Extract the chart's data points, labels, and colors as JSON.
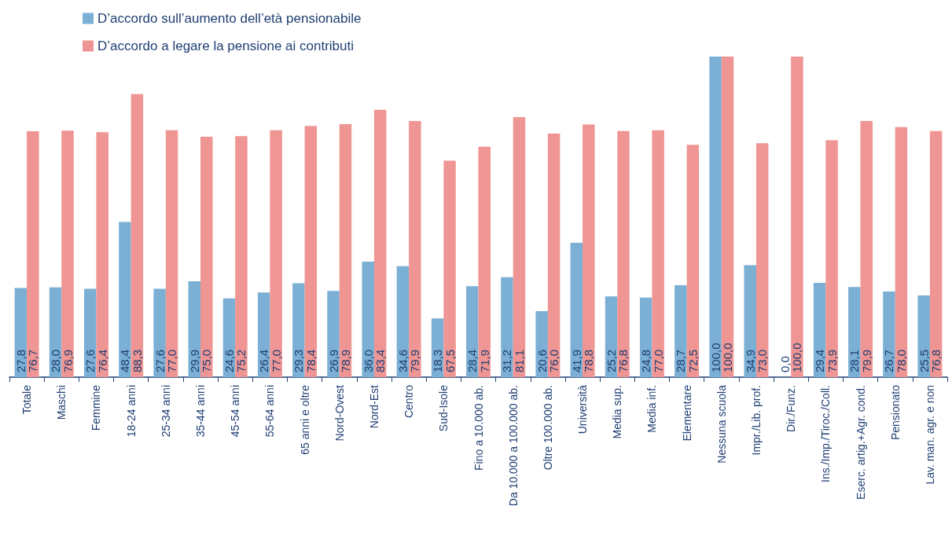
{
  "chart_data": {
    "type": "bar",
    "categories": [
      "Totale",
      "Maschi",
      "Femmine",
      "18-24 anni",
      "25-34 anni",
      "35-44 anni",
      "45-54 anni",
      "55-64 anni",
      "65 anni e oltre",
      "Nord-Ovest",
      "Nord-Est",
      "Centro",
      "Sud-Isole",
      "Fino a 10.000 ab.",
      "Da 10.000 a 100.000 ab.",
      "Oltre 100.000 ab.",
      "Università",
      "Media sup.",
      "Media inf.",
      "Elementare",
      "Nessuna scuola",
      "Impr./Lib. prof.",
      "Dir./Funz.",
      "Ins./Imp./Tiroc./Coll.",
      "Eserc. artig.+Agr. cond.",
      "Pensionato",
      "Lav. man. agr. e non"
    ],
    "series": [
      {
        "name": "D’accordo sull’aumento dell’età pensionabile",
        "color": "#7bafd4",
        "values": [
          27.8,
          28.0,
          27.6,
          48.4,
          27.6,
          29.9,
          24.6,
          26.4,
          29.3,
          26.9,
          36.0,
          34.6,
          18.3,
          28.4,
          31.2,
          20.6,
          41.9,
          25.2,
          24.8,
          28.7,
          100.0,
          34.9,
          0.0,
          29.4,
          28.1,
          26.7,
          25.5
        ],
        "value_labels": [
          "27,8",
          "28,0",
          "27,6",
          "48,4",
          "27,6",
          "29,9",
          "24,6",
          "26,4",
          "29,3",
          "26,9",
          "36,0",
          "34,6",
          "18,3",
          "28,4",
          "31,2",
          "20,6",
          "41,9",
          "25,2",
          "24,8",
          "28,7",
          "100,0",
          "34,9",
          "0,0",
          "29,4",
          "28,1",
          "26,7",
          "25,5"
        ]
      },
      {
        "name": "D’accordo a legare la pensione ai contributi",
        "color": "#ef9593",
        "values": [
          76.7,
          76.9,
          76.4,
          88.3,
          77.0,
          75.0,
          75.2,
          77.0,
          78.4,
          78.9,
          83.4,
          79.9,
          67.5,
          71.9,
          81.1,
          76.0,
          78.8,
          76.8,
          77.0,
          72.5,
          100.0,
          73.0,
          100.0,
          73.9,
          79.9,
          78.0,
          76.8
        ],
        "value_labels": [
          "76,7",
          "76,9",
          "76,4",
          "88,3",
          "77,0",
          "75,0",
          "75,2",
          "77,0",
          "78,4",
          "78,9",
          "83,4",
          "79,9",
          "67,5",
          "71,9",
          "81,1",
          "76,0",
          "78,8",
          "76,8",
          "77,0",
          "72,5",
          "100,0",
          "73,0",
          "100,0",
          "73,9",
          "79,9",
          "78,0",
          "76,8"
        ]
      }
    ],
    "legend": "top left",
    "grid": false
  }
}
